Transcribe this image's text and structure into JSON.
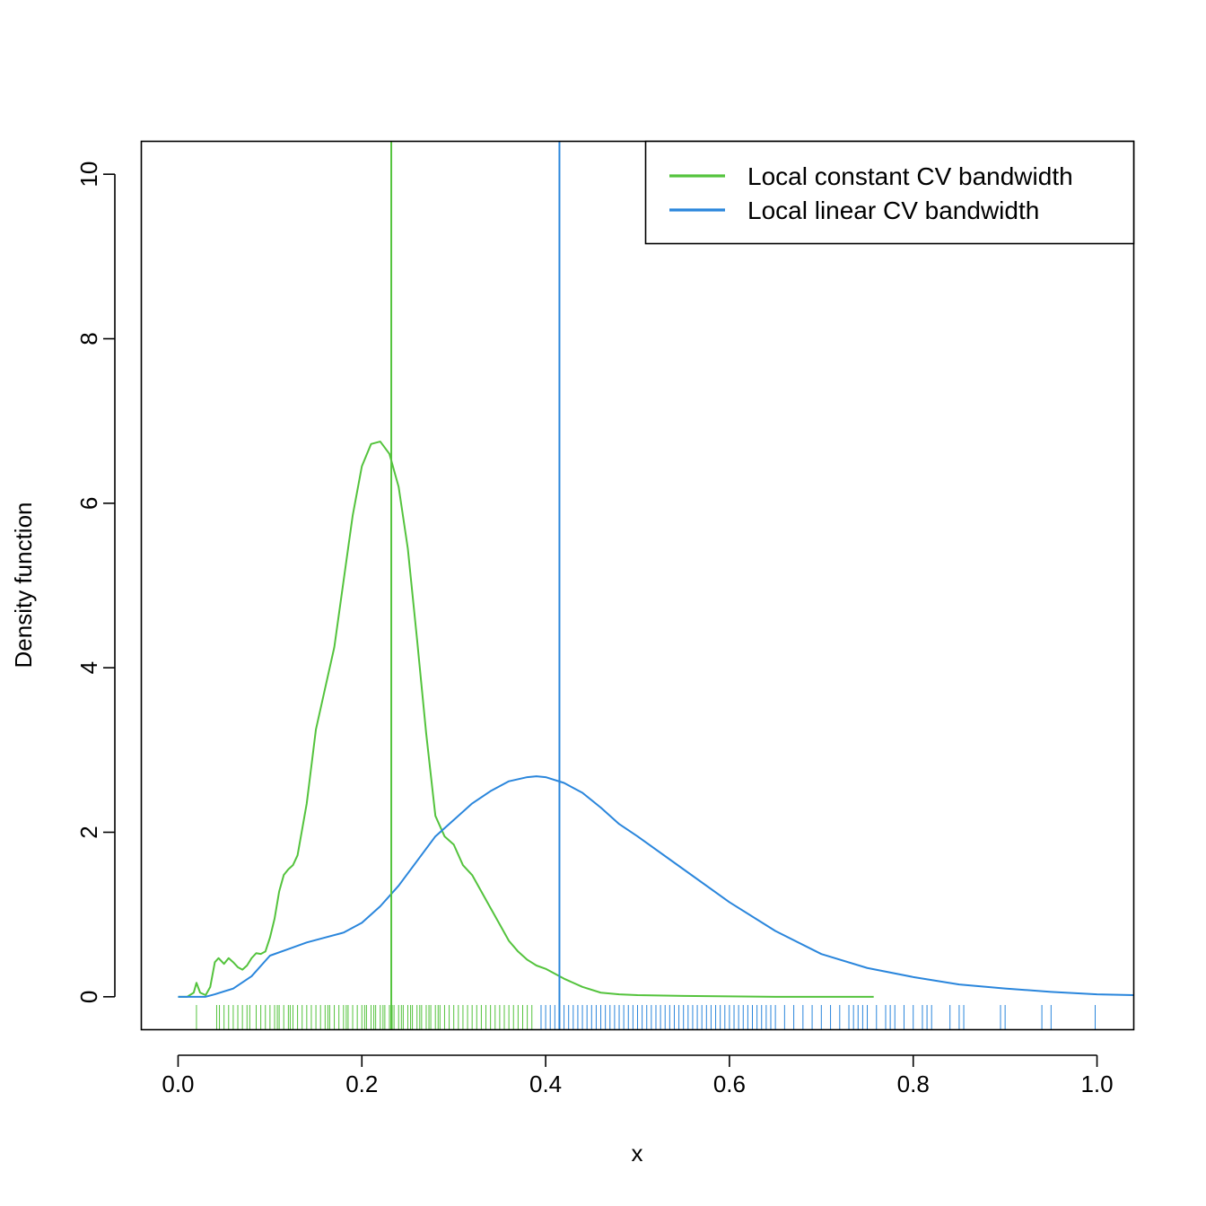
{
  "chart_data": {
    "type": "line",
    "xlabel": "x",
    "ylabel": "Density function",
    "xlim": [
      -0.04,
      1.04
    ],
    "ylim": [
      -0.4,
      10.4
    ],
    "x_ticks": [
      "0.0",
      "0.2",
      "0.4",
      "0.6",
      "0.8",
      "1.0"
    ],
    "y_ticks": [
      "0",
      "2",
      "4",
      "6",
      "8",
      "10"
    ],
    "grid": false,
    "legend_position": "top-right",
    "series": [
      {
        "name": "Local constant CV bandwidth",
        "color": "#54c33d",
        "bandwidth": 0.232,
        "x": [
          0.0,
          0.01,
          0.017,
          0.02,
          0.024,
          0.03,
          0.035,
          0.04,
          0.044,
          0.05,
          0.055,
          0.06,
          0.065,
          0.07,
          0.075,
          0.08,
          0.085,
          0.09,
          0.095,
          0.1,
          0.105,
          0.11,
          0.115,
          0.12,
          0.125,
          0.13,
          0.14,
          0.15,
          0.16,
          0.17,
          0.18,
          0.19,
          0.2,
          0.21,
          0.22,
          0.23,
          0.24,
          0.25,
          0.26,
          0.27,
          0.28,
          0.29,
          0.3,
          0.31,
          0.32,
          0.33,
          0.34,
          0.35,
          0.36,
          0.37,
          0.38,
          0.39,
          0.4,
          0.42,
          0.44,
          0.46,
          0.48,
          0.5,
          0.55,
          0.6,
          0.65,
          0.7,
          0.757
        ],
        "y": [
          0.0,
          0.0,
          0.05,
          0.17,
          0.05,
          0.02,
          0.12,
          0.42,
          0.47,
          0.4,
          0.47,
          0.42,
          0.36,
          0.33,
          0.38,
          0.47,
          0.53,
          0.52,
          0.55,
          0.72,
          0.95,
          1.28,
          1.48,
          1.55,
          1.6,
          1.72,
          2.35,
          3.25,
          3.75,
          4.25,
          5.05,
          5.85,
          6.45,
          6.72,
          6.75,
          6.6,
          6.2,
          5.45,
          4.35,
          3.2,
          2.2,
          1.95,
          1.85,
          1.6,
          1.48,
          1.28,
          1.08,
          0.88,
          0.68,
          0.55,
          0.45,
          0.38,
          0.34,
          0.22,
          0.12,
          0.05,
          0.03,
          0.02,
          0.01,
          0.005,
          0.0,
          0.0,
          0.0
        ]
      },
      {
        "name": "Local linear CV bandwidth",
        "color": "#2a86dc",
        "bandwidth": 0.415,
        "x": [
          0.0,
          0.03,
          0.04,
          0.06,
          0.08,
          0.1,
          0.12,
          0.14,
          0.16,
          0.18,
          0.2,
          0.22,
          0.24,
          0.26,
          0.28,
          0.3,
          0.32,
          0.34,
          0.36,
          0.38,
          0.39,
          0.4,
          0.42,
          0.44,
          0.46,
          0.48,
          0.5,
          0.55,
          0.6,
          0.65,
          0.7,
          0.75,
          0.8,
          0.85,
          0.9,
          0.95,
          1.0,
          1.04
        ],
        "y": [
          0.0,
          0.0,
          0.03,
          0.1,
          0.25,
          0.5,
          0.58,
          0.66,
          0.72,
          0.78,
          0.9,
          1.1,
          1.35,
          1.65,
          1.95,
          2.15,
          2.35,
          2.5,
          2.62,
          2.67,
          2.68,
          2.67,
          2.6,
          2.48,
          2.3,
          2.1,
          1.95,
          1.55,
          1.15,
          0.8,
          0.52,
          0.35,
          0.24,
          0.15,
          0.1,
          0.06,
          0.03,
          0.02
        ]
      }
    ],
    "rug": {
      "local_constant": [
        0.02,
        0.042,
        0.045,
        0.05,
        0.055,
        0.06,
        0.065,
        0.07,
        0.075,
        0.078,
        0.085,
        0.09,
        0.095,
        0.1,
        0.105,
        0.108,
        0.11,
        0.115,
        0.12,
        0.122,
        0.125,
        0.13,
        0.135,
        0.14,
        0.145,
        0.15,
        0.155,
        0.16,
        0.163,
        0.165,
        0.17,
        0.175,
        0.18,
        0.183,
        0.185,
        0.19,
        0.195,
        0.2,
        0.203,
        0.205,
        0.21,
        0.213,
        0.215,
        0.22,
        0.223,
        0.225,
        0.23,
        0.233,
        0.235,
        0.24,
        0.243,
        0.245,
        0.25,
        0.253,
        0.255,
        0.26,
        0.263,
        0.265,
        0.27,
        0.273,
        0.275,
        0.28,
        0.283,
        0.285,
        0.29,
        0.295,
        0.3,
        0.305,
        0.31,
        0.315,
        0.32,
        0.325,
        0.33,
        0.335,
        0.34,
        0.345,
        0.35,
        0.355,
        0.36,
        0.365,
        0.37,
        0.375,
        0.38,
        0.385
      ],
      "local_linear": [
        0.395,
        0.4,
        0.405,
        0.41,
        0.415,
        0.42,
        0.425,
        0.43,
        0.435,
        0.44,
        0.445,
        0.45,
        0.455,
        0.46,
        0.465,
        0.47,
        0.475,
        0.48,
        0.485,
        0.49,
        0.495,
        0.5,
        0.505,
        0.51,
        0.515,
        0.52,
        0.525,
        0.53,
        0.535,
        0.54,
        0.545,
        0.55,
        0.555,
        0.56,
        0.565,
        0.57,
        0.575,
        0.58,
        0.585,
        0.59,
        0.595,
        0.6,
        0.605,
        0.61,
        0.615,
        0.62,
        0.625,
        0.63,
        0.635,
        0.64,
        0.645,
        0.65,
        0.66,
        0.67,
        0.68,
        0.69,
        0.7,
        0.71,
        0.72,
        0.73,
        0.735,
        0.74,
        0.745,
        0.75,
        0.76,
        0.77,
        0.775,
        0.78,
        0.79,
        0.8,
        0.81,
        0.815,
        0.82,
        0.84,
        0.85,
        0.855,
        0.895,
        0.9,
        0.94,
        0.95,
        0.998
      ]
    }
  }
}
